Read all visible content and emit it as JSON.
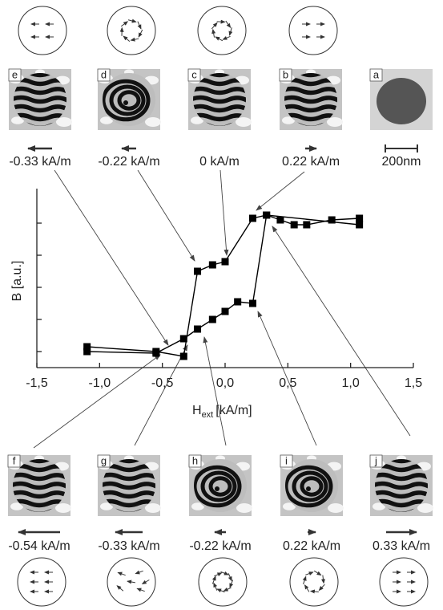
{
  "chart_data": {
    "type": "line",
    "ylabel": "B [a.u.]",
    "xlabel": {
      "main": "H",
      "sub": "ext",
      "unit": "[kA/m]"
    },
    "xlim": [
      -1.5,
      1.5
    ],
    "xticks": [
      {
        "value": -1.5,
        "label": "-1,5"
      },
      {
        "value": -1.0,
        "label": "-1,0"
      },
      {
        "value": -0.5,
        "label": "-0,5"
      },
      {
        "value": 0,
        "label": "0,0"
      },
      {
        "value": 0.5,
        "label": "0,5"
      },
      {
        "value": 1.0,
        "label": "1,0"
      },
      {
        "value": 1.5,
        "label": "1,5"
      }
    ],
    "ylim": [
      0,
      5.5
    ],
    "yticks": [
      0.5,
      1.5,
      2.5,
      3.5,
      4.5
    ],
    "series": [
      {
        "color": "#000000",
        "x": [
          1.07,
          0.33,
          0.22,
          0.0,
          -0.1,
          -0.22,
          -0.33,
          -0.55,
          -1.1
        ],
        "values": [
          4.45,
          4.75,
          4.65,
          3.3,
          3.2,
          3.0,
          0.35,
          0.5,
          0.65
        ]
      },
      {
        "color": "#000000",
        "x": [
          -1.1,
          -0.55,
          -0.33,
          -0.22,
          -0.1,
          0.0,
          0.1,
          0.22,
          0.33,
          0.44,
          0.55,
          0.65,
          0.85,
          1.07
        ],
        "values": [
          0.5,
          0.45,
          0.9,
          1.2,
          1.5,
          1.75,
          2.05,
          2.0,
          4.75,
          4.6,
          4.45,
          4.45,
          4.6,
          4.65
        ]
      }
    ]
  },
  "panels_top": [
    {
      "letter": "e",
      "field": "-0.33 kA/m"
    },
    {
      "letter": "d",
      "field": "-0.22 kA/m"
    },
    {
      "letter": "c",
      "field": "0 kA/m"
    },
    {
      "letter": "b",
      "field": "0.22 kA/m"
    },
    {
      "letter": "a",
      "field": "200nm"
    }
  ],
  "panels_bottom": [
    {
      "letter": "f",
      "field": "-0.54 kA/m"
    },
    {
      "letter": "g",
      "field": "-0.33 kA/m"
    },
    {
      "letter": "h",
      "field": "-0.22 kA/m"
    },
    {
      "letter": "i",
      "field": "0.22 kA/m"
    },
    {
      "letter": "j",
      "field": "0.33 kA/m"
    }
  ]
}
